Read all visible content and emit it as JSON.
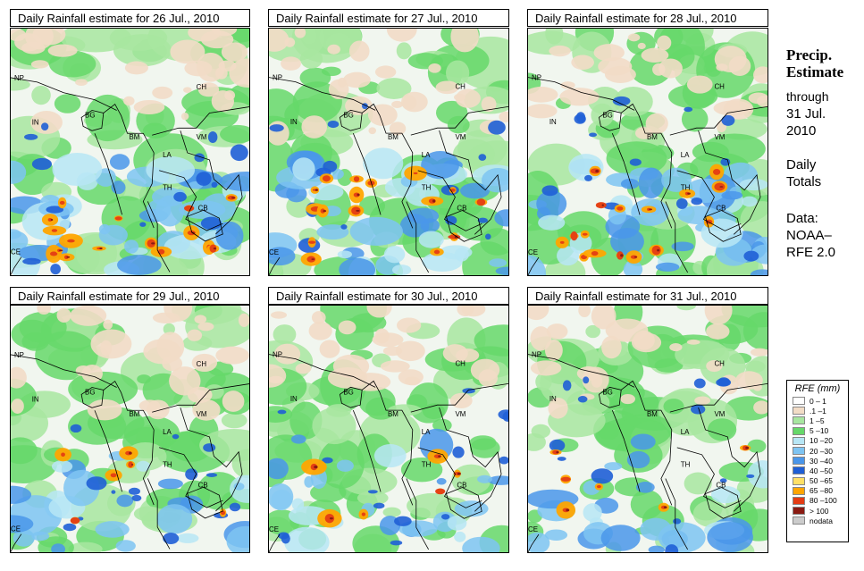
{
  "panels": [
    {
      "title": "Daily Rainfall estimate for  26 Jul., 2010"
    },
    {
      "title": "Daily Rainfall estimate for  27 Jul., 2010"
    },
    {
      "title": "Daily Rainfall estimate for  28 Jul., 2010"
    },
    {
      "title": "Daily Rainfall estimate for  29 Jul., 2010"
    },
    {
      "title": "Daily Rainfall estimate for  30 Jul., 2010"
    },
    {
      "title": "Daily Rainfall estimate for  31 Jul., 2010"
    }
  ],
  "country_labels": [
    "NP",
    "IN",
    "BG",
    "BM",
    "CH",
    "VM",
    "LA",
    "TH",
    "CB",
    "CE"
  ],
  "side": {
    "heading_line1": "Precip.",
    "heading_line2": "Estimate",
    "through": "through",
    "date_line1": "31 Jul.",
    "date_line2": "2010",
    "daily_line1": "Daily",
    "daily_line2": "Totals",
    "data_line1": "Data:",
    "data_line2": "NOAA–",
    "data_line3": "RFE 2.0"
  },
  "legend": {
    "title": "RFE (mm)",
    "items": [
      {
        "label": "0 – 1",
        "color": "#ffffff"
      },
      {
        "label": ".1 –1",
        "color": "#f2dcc6"
      },
      {
        "label": "1 –5",
        "color": "#a8e6a0"
      },
      {
        "label": "5 –10",
        "color": "#66d86a"
      },
      {
        "label": "10 –20",
        "color": "#b7e6f5"
      },
      {
        "label": "20 –30",
        "color": "#7ec4f2"
      },
      {
        "label": "30 –40",
        "color": "#4a96ea"
      },
      {
        "label": "40 –50",
        "color": "#1f5fd6"
      },
      {
        "label": "50 –65",
        "color": "#ffe066"
      },
      {
        "label": "65 –80",
        "color": "#ffa500"
      },
      {
        "label": "80 –100",
        "color": "#e43c14"
      },
      {
        "label": "> 100",
        "color": "#8a1a12"
      },
      {
        "label": "nodata",
        "color": "#cccccc"
      }
    ]
  }
}
